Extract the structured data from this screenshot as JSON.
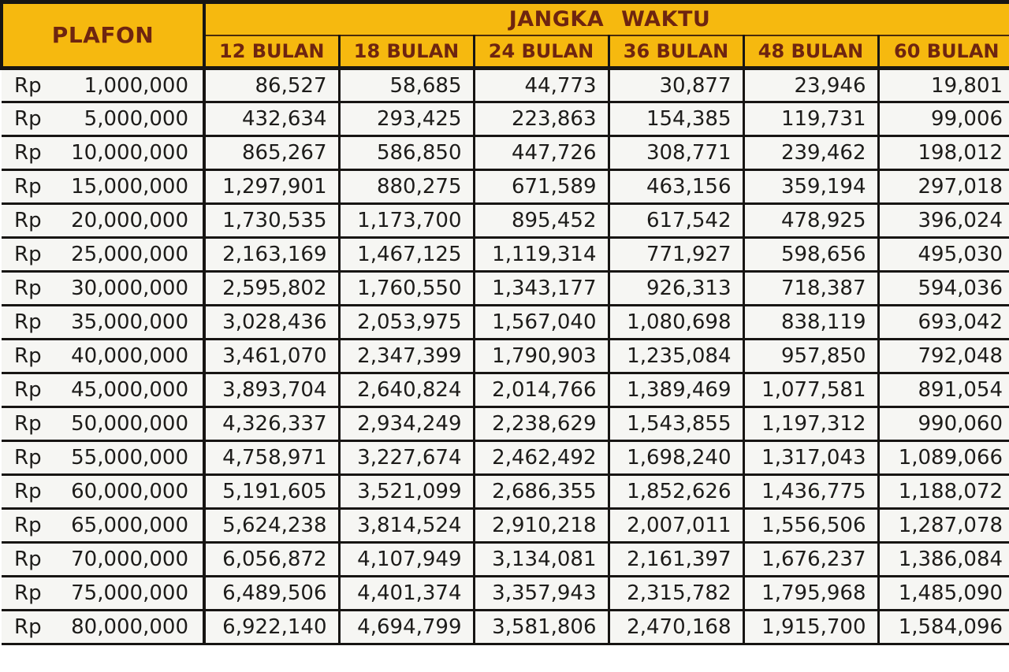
{
  "table": {
    "plafon_header": "PLAFON",
    "period_header": "JANGKA WAKTU",
    "currency_prefix": "Rp",
    "columns": [
      "12 BULAN",
      "18 BULAN",
      "24 BULAN",
      "36 BULAN",
      "48 BULAN",
      "60 BULAN"
    ],
    "rows": [
      {
        "plafon": "1,000,000",
        "values": [
          "86,527",
          "58,685",
          "44,773",
          "30,877",
          "23,946",
          "19,801"
        ]
      },
      {
        "plafon": "5,000,000",
        "values": [
          "432,634",
          "293,425",
          "223,863",
          "154,385",
          "119,731",
          "99,006"
        ]
      },
      {
        "plafon": "10,000,000",
        "values": [
          "865,267",
          "586,850",
          "447,726",
          "308,771",
          "239,462",
          "198,012"
        ]
      },
      {
        "plafon": "15,000,000",
        "values": [
          "1,297,901",
          "880,275",
          "671,589",
          "463,156",
          "359,194",
          "297,018"
        ]
      },
      {
        "plafon": "20,000,000",
        "values": [
          "1,730,535",
          "1,173,700",
          "895,452",
          "617,542",
          "478,925",
          "396,024"
        ]
      },
      {
        "plafon": "25,000,000",
        "values": [
          "2,163,169",
          "1,467,125",
          "1,119,314",
          "771,927",
          "598,656",
          "495,030"
        ]
      },
      {
        "plafon": "30,000,000",
        "values": [
          "2,595,802",
          "1,760,550",
          "1,343,177",
          "926,313",
          "718,387",
          "594,036"
        ]
      },
      {
        "plafon": "35,000,000",
        "values": [
          "3,028,436",
          "2,053,975",
          "1,567,040",
          "1,080,698",
          "838,119",
          "693,042"
        ]
      },
      {
        "plafon": "40,000,000",
        "values": [
          "3,461,070",
          "2,347,399",
          "1,790,903",
          "1,235,084",
          "957,850",
          "792,048"
        ]
      },
      {
        "plafon": "45,000,000",
        "values": [
          "3,893,704",
          "2,640,824",
          "2,014,766",
          "1,389,469",
          "1,077,581",
          "891,054"
        ]
      },
      {
        "plafon": "50,000,000",
        "values": [
          "4,326,337",
          "2,934,249",
          "2,238,629",
          "1,543,855",
          "1,197,312",
          "990,060"
        ]
      },
      {
        "plafon": "55,000,000",
        "values": [
          "4,758,971",
          "3,227,674",
          "2,462,492",
          "1,698,240",
          "1,317,043",
          "1,089,066"
        ]
      },
      {
        "plafon": "60,000,000",
        "values": [
          "5,191,605",
          "3,521,099",
          "2,686,355",
          "1,852,626",
          "1,436,775",
          "1,188,072"
        ]
      },
      {
        "plafon": "65,000,000",
        "values": [
          "5,624,238",
          "3,814,524",
          "2,910,218",
          "2,007,011",
          "1,556,506",
          "1,287,078"
        ]
      },
      {
        "plafon": "70,000,000",
        "values": [
          "6,056,872",
          "4,107,949",
          "3,134,081",
          "2,161,397",
          "1,676,237",
          "1,386,084"
        ]
      },
      {
        "plafon": "75,000,000",
        "values": [
          "6,489,506",
          "4,401,374",
          "3,357,943",
          "2,315,782",
          "1,795,968",
          "1,485,090"
        ]
      },
      {
        "plafon": "80,000,000",
        "values": [
          "6,922,140",
          "4,694,799",
          "3,581,806",
          "2,470,168",
          "1,915,700",
          "1,584,096"
        ]
      }
    ]
  },
  "colors": {
    "header_bg": "#f6b90f",
    "header_text": "#6e2510",
    "grid": "#171513",
    "cell_bg": "#f6f6f3",
    "cell_text": "#1d1c1a"
  },
  "chart_data": {
    "type": "table",
    "columns": [
      "PLAFON (Rp)",
      "12 BULAN",
      "18 BULAN",
      "24 BULAN",
      "36 BULAN",
      "48 BULAN",
      "60 BULAN"
    ],
    "rows": [
      [
        1000000,
        86527,
        58685,
        44773,
        30877,
        23946,
        19801
      ],
      [
        5000000,
        432634,
        293425,
        223863,
        154385,
        119731,
        99006
      ],
      [
        10000000,
        865267,
        586850,
        447726,
        308771,
        239462,
        198012
      ],
      [
        15000000,
        1297901,
        880275,
        671589,
        463156,
        359194,
        297018
      ],
      [
        20000000,
        1730535,
        1173700,
        895452,
        617542,
        478925,
        396024
      ],
      [
        25000000,
        2163169,
        1467125,
        1119314,
        771927,
        598656,
        495030
      ],
      [
        30000000,
        2595802,
        1760550,
        1343177,
        926313,
        718387,
        594036
      ],
      [
        35000000,
        3028436,
        2053975,
        1567040,
        1080698,
        838119,
        693042
      ],
      [
        40000000,
        3461070,
        2347399,
        1790903,
        1235084,
        957850,
        792048
      ],
      [
        45000000,
        3893704,
        2640824,
        2014766,
        1389469,
        1077581,
        891054
      ],
      [
        50000000,
        4326337,
        2934249,
        2238629,
        1543855,
        1197312,
        990060
      ],
      [
        55000000,
        4758971,
        3227674,
        2462492,
        1698240,
        1317043,
        1089066
      ],
      [
        60000000,
        5191605,
        3521099,
        2686355,
        1852626,
        1436775,
        1188072
      ],
      [
        65000000,
        5624238,
        3814524,
        2910218,
        2007011,
        1556506,
        1287078
      ],
      [
        70000000,
        6056872,
        4107949,
        3134081,
        2161397,
        1676237,
        1386084
      ],
      [
        75000000,
        6489506,
        4401374,
        3357943,
        2315782,
        1795968,
        1485090
      ],
      [
        80000000,
        6922140,
        4694799,
        3581806,
        2470168,
        1915700,
        1584096
      ]
    ]
  }
}
